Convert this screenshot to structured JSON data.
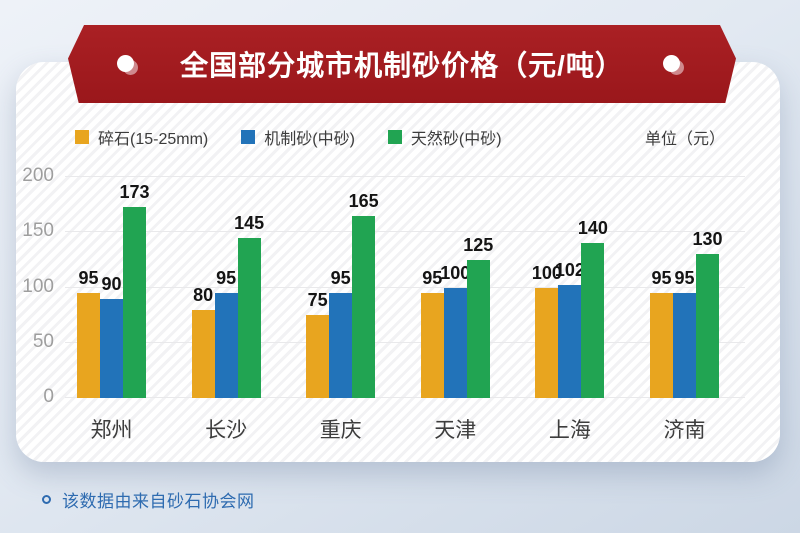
{
  "ribbon": {
    "title": "全国部分城市机制砂价格（元/吨）",
    "color": "#9e1b1e"
  },
  "legend": {
    "items": [
      {
        "label": "碎石(15-25mm)",
        "color": "#E8A51F"
      },
      {
        "label": "机制砂(中砂)",
        "color": "#2273B9"
      },
      {
        "label": "天然砂(中砂)",
        "color": "#21A452"
      }
    ],
    "unit_label": "单位（元）"
  },
  "chart_data": {
    "type": "bar",
    "title": "全国部分城市机制砂价格（元/吨）",
    "categories": [
      "郑州",
      "长沙",
      "重庆",
      "天津",
      "上海",
      "济南"
    ],
    "series": [
      {
        "name": "碎石(15-25mm)",
        "color": "#E8A51F",
        "values": [
          95,
          80,
          75,
          95,
          100,
          95
        ]
      },
      {
        "name": "机制砂(中砂)",
        "color": "#2273B9",
        "values": [
          90,
          95,
          95,
          100,
          102,
          95
        ]
      },
      {
        "name": "天然砂(中砂)",
        "color": "#21A452",
        "values": [
          173,
          145,
          165,
          125,
          140,
          130
        ]
      }
    ],
    "xlabel": "",
    "ylabel": "",
    "yticks": [
      0,
      50,
      100,
      150,
      200
    ],
    "ylim": [
      0,
      200
    ],
    "grid": true,
    "legend_position": "top",
    "value_labels": true
  },
  "footer": {
    "note": "该数据由来自砂石协会网"
  }
}
